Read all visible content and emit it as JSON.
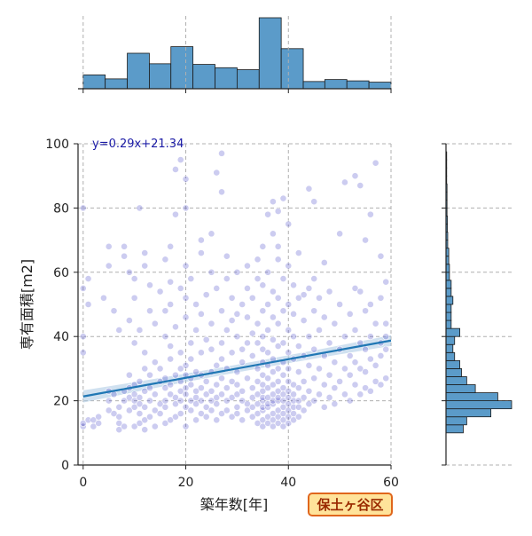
{
  "chart_data": {
    "type": "scatter",
    "title": "",
    "xlabel": "築年数[年]",
    "ylabel": "専有面積[m2]",
    "xlim": [
      -1,
      60
    ],
    "ylim": [
      0,
      100
    ],
    "x_ticks": [
      0,
      20,
      40,
      60
    ],
    "y_ticks": [
      0,
      20,
      40,
      60,
      80,
      100
    ],
    "grid": true,
    "regression": {
      "label": "y=0.29x+21.34",
      "slope": 0.29,
      "intercept": 21.34,
      "color": "#1f77b4",
      "band_color": "#a9c8e4"
    },
    "point_color": "#5555cc",
    "hist_color": "#5b9bc9",
    "x_hist": {
      "bin_edges": [
        0,
        4.3,
        8.6,
        12.9,
        17.1,
        21.4,
        25.7,
        30,
        34.3,
        38.6,
        42.9,
        47.1,
        51.4,
        55.7,
        60
      ],
      "counts": [
        21,
        15,
        54,
        38,
        64,
        37,
        32,
        29,
        108,
        61,
        11,
        14,
        12,
        10
      ]
    },
    "y_hist": {
      "bin_edges": [
        10,
        12.5,
        15,
        17.5,
        20,
        22.5,
        25,
        27.5,
        30,
        32.5,
        35,
        37.5,
        40,
        42.5,
        45,
        47.5,
        50,
        52.5,
        55,
        57.5,
        60,
        62.5,
        65,
        67.5,
        70,
        72.5,
        75,
        77.5,
        80,
        82.5,
        85,
        87.5,
        90,
        92.5,
        95,
        97.5
      ],
      "counts": [
        50,
        60,
        130,
        190,
        150,
        85,
        60,
        45,
        40,
        25,
        20,
        25,
        40,
        15,
        15,
        15,
        20,
        15,
        15,
        10,
        10,
        8,
        8,
        5,
        5,
        4,
        4,
        3,
        3,
        3,
        3,
        2,
        2,
        2,
        2,
        1
      ]
    },
    "points": [
      [
        0,
        12
      ],
      [
        0,
        13
      ],
      [
        0,
        35
      ],
      [
        0,
        40
      ],
      [
        0,
        55
      ],
      [
        0,
        80
      ],
      [
        1,
        14
      ],
      [
        1,
        50
      ],
      [
        1,
        58
      ],
      [
        2,
        12
      ],
      [
        2,
        14
      ],
      [
        3,
        13
      ],
      [
        3,
        15
      ],
      [
        4,
        52
      ],
      [
        5,
        17
      ],
      [
        5,
        20
      ],
      [
        5,
        23
      ],
      [
        5,
        62
      ],
      [
        5,
        68
      ],
      [
        6,
        16
      ],
      [
        6,
        22
      ],
      [
        6,
        48
      ],
      [
        7,
        11
      ],
      [
        7,
        13
      ],
      [
        7,
        15
      ],
      [
        7,
        18
      ],
      [
        7,
        42
      ],
      [
        8,
        12
      ],
      [
        8,
        20
      ],
      [
        8,
        23
      ],
      [
        8,
        65
      ],
      [
        8,
        68
      ],
      [
        9,
        17
      ],
      [
        9,
        21
      ],
      [
        9,
        24
      ],
      [
        9,
        28
      ],
      [
        9,
        45
      ],
      [
        9,
        60
      ],
      [
        10,
        12
      ],
      [
        10,
        18
      ],
      [
        10,
        20
      ],
      [
        10,
        22
      ],
      [
        10,
        25
      ],
      [
        10,
        38
      ],
      [
        10,
        52
      ],
      [
        10,
        58
      ],
      [
        11,
        13
      ],
      [
        11,
        16
      ],
      [
        11,
        19
      ],
      [
        11,
        21
      ],
      [
        11,
        26
      ],
      [
        11,
        42
      ],
      [
        11,
        80
      ],
      [
        12,
        11
      ],
      [
        12,
        14
      ],
      [
        12,
        18
      ],
      [
        12,
        23
      ],
      [
        12,
        30
      ],
      [
        12,
        35
      ],
      [
        12,
        62
      ],
      [
        12,
        66
      ],
      [
        13,
        15
      ],
      [
        13,
        20
      ],
      [
        13,
        24
      ],
      [
        13,
        28
      ],
      [
        13,
        48
      ],
      [
        13,
        56
      ],
      [
        14,
        12
      ],
      [
        14,
        17
      ],
      [
        14,
        22
      ],
      [
        14,
        32
      ],
      [
        14,
        44
      ],
      [
        15,
        16
      ],
      [
        15,
        19
      ],
      [
        15,
        26
      ],
      [
        15,
        30
      ],
      [
        15,
        54
      ],
      [
        16,
        13
      ],
      [
        16,
        18
      ],
      [
        16,
        20
      ],
      [
        16,
        24
      ],
      [
        16,
        27
      ],
      [
        16,
        40
      ],
      [
        16,
        48
      ],
      [
        16,
        64
      ],
      [
        17,
        14
      ],
      [
        17,
        22
      ],
      [
        17,
        25
      ],
      [
        17,
        33
      ],
      [
        17,
        37
      ],
      [
        17,
        50
      ],
      [
        17,
        57
      ],
      [
        17,
        68
      ],
      [
        18,
        15
      ],
      [
        18,
        19
      ],
      [
        18,
        21
      ],
      [
        18,
        28
      ],
      [
        18,
        43
      ],
      [
        18,
        78
      ],
      [
        18,
        92
      ],
      [
        19,
        16
      ],
      [
        19,
        20
      ],
      [
        19,
        23
      ],
      [
        19,
        26
      ],
      [
        19,
        30
      ],
      [
        19,
        35
      ],
      [
        19,
        55
      ],
      [
        19,
        95
      ],
      [
        20,
        12
      ],
      [
        20,
        18
      ],
      [
        20,
        22
      ],
      [
        20,
        24
      ],
      [
        20,
        28
      ],
      [
        20,
        31
      ],
      [
        20,
        46
      ],
      [
        20,
        52
      ],
      [
        20,
        62
      ],
      [
        20,
        80
      ],
      [
        20,
        89
      ],
      [
        21,
        17
      ],
      [
        21,
        20
      ],
      [
        21,
        25
      ],
      [
        21,
        27
      ],
      [
        21,
        33
      ],
      [
        21,
        38
      ],
      [
        21,
        58
      ],
      [
        22,
        14
      ],
      [
        22,
        19
      ],
      [
        22,
        21
      ],
      [
        22,
        23
      ],
      [
        22,
        29
      ],
      [
        22,
        42
      ],
      [
        22,
        50
      ],
      [
        23,
        16
      ],
      [
        23,
        20
      ],
      [
        23,
        24
      ],
      [
        23,
        28
      ],
      [
        23,
        35
      ],
      [
        23,
        47
      ],
      [
        23,
        66
      ],
      [
        23,
        70
      ],
      [
        24,
        15
      ],
      [
        24,
        18
      ],
      [
        24,
        22
      ],
      [
        24,
        26
      ],
      [
        24,
        39
      ],
      [
        24,
        53
      ],
      [
        25,
        17
      ],
      [
        25,
        20
      ],
      [
        25,
        23
      ],
      [
        25,
        29
      ],
      [
        25,
        36
      ],
      [
        25,
        44
      ],
      [
        25,
        60
      ],
      [
        25,
        72
      ],
      [
        26,
        14
      ],
      [
        26,
        19
      ],
      [
        26,
        21
      ],
      [
        26,
        25
      ],
      [
        26,
        31
      ],
      [
        26,
        55
      ],
      [
        26,
        91
      ],
      [
        27,
        16
      ],
      [
        27,
        22
      ],
      [
        27,
        27
      ],
      [
        27,
        33
      ],
      [
        27,
        38
      ],
      [
        27,
        48
      ],
      [
        27,
        85
      ],
      [
        27,
        97
      ],
      [
        28,
        17
      ],
      [
        28,
        20
      ],
      [
        28,
        24
      ],
      [
        28,
        30
      ],
      [
        28,
        42
      ],
      [
        28,
        58
      ],
      [
        28,
        65
      ],
      [
        29,
        15
      ],
      [
        29,
        21
      ],
      [
        29,
        26
      ],
      [
        29,
        35
      ],
      [
        29,
        45
      ],
      [
        29,
        52
      ],
      [
        30,
        16
      ],
      [
        30,
        18
      ],
      [
        30,
        22
      ],
      [
        30,
        25
      ],
      [
        30,
        29
      ],
      [
        30,
        40
      ],
      [
        30,
        47
      ],
      [
        30,
        60
      ],
      [
        31,
        14
      ],
      [
        31,
        20
      ],
      [
        31,
        23
      ],
      [
        31,
        32
      ],
      [
        31,
        36
      ],
      [
        31,
        50
      ],
      [
        32,
        17
      ],
      [
        32,
        19
      ],
      [
        32,
        27
      ],
      [
        32,
        38
      ],
      [
        32,
        46
      ],
      [
        32,
        55
      ],
      [
        32,
        62
      ],
      [
        33,
        15
      ],
      [
        33,
        18
      ],
      [
        33,
        21
      ],
      [
        33,
        24
      ],
      [
        33,
        34
      ],
      [
        33,
        41
      ],
      [
        33,
        52
      ],
      [
        34,
        13
      ],
      [
        34,
        16
      ],
      [
        34,
        19
      ],
      [
        34,
        22
      ],
      [
        34,
        26
      ],
      [
        34,
        30
      ],
      [
        34,
        38
      ],
      [
        34,
        44
      ],
      [
        34,
        58
      ],
      [
        34,
        64
      ],
      [
        35,
        12
      ],
      [
        35,
        14
      ],
      [
        35,
        17
      ],
      [
        35,
        18
      ],
      [
        35,
        20
      ],
      [
        35,
        21
      ],
      [
        35,
        23
      ],
      [
        35,
        25
      ],
      [
        35,
        28
      ],
      [
        35,
        32
      ],
      [
        35,
        36
      ],
      [
        35,
        40
      ],
      [
        35,
        48
      ],
      [
        35,
        56
      ],
      [
        35,
        68
      ],
      [
        36,
        13
      ],
      [
        36,
        15
      ],
      [
        36,
        18
      ],
      [
        36,
        19
      ],
      [
        36,
        21
      ],
      [
        36,
        24
      ],
      [
        36,
        27
      ],
      [
        36,
        31
      ],
      [
        36,
        35
      ],
      [
        36,
        42
      ],
      [
        36,
        50
      ],
      [
        36,
        60
      ],
      [
        36,
        78
      ],
      [
        37,
        12
      ],
      [
        37,
        14
      ],
      [
        37,
        16
      ],
      [
        37,
        19
      ],
      [
        37,
        20
      ],
      [
        37,
        22
      ],
      [
        37,
        25
      ],
      [
        37,
        29
      ],
      [
        37,
        33
      ],
      [
        37,
        39
      ],
      [
        37,
        46
      ],
      [
        37,
        54
      ],
      [
        37,
        72
      ],
      [
        37,
        82
      ],
      [
        38,
        13
      ],
      [
        38,
        15
      ],
      [
        38,
        17
      ],
      [
        38,
        20
      ],
      [
        38,
        21
      ],
      [
        38,
        23
      ],
      [
        38,
        26
      ],
      [
        38,
        30
      ],
      [
        38,
        37
      ],
      [
        38,
        44
      ],
      [
        38,
        52
      ],
      [
        38,
        64
      ],
      [
        38,
        68
      ],
      [
        38,
        79
      ],
      [
        39,
        12
      ],
      [
        39,
        14
      ],
      [
        39,
        16
      ],
      [
        39,
        18
      ],
      [
        39,
        20
      ],
      [
        39,
        22
      ],
      [
        39,
        24
      ],
      [
        39,
        28
      ],
      [
        39,
        32
      ],
      [
        39,
        38
      ],
      [
        39,
        48
      ],
      [
        39,
        58
      ],
      [
        39,
        83
      ],
      [
        40,
        13
      ],
      [
        40,
        15
      ],
      [
        40,
        17
      ],
      [
        40,
        19
      ],
      [
        40,
        21
      ],
      [
        40,
        23
      ],
      [
        40,
        26
      ],
      [
        40,
        30
      ],
      [
        40,
        35
      ],
      [
        40,
        42
      ],
      [
        40,
        50
      ],
      [
        40,
        62
      ],
      [
        40,
        75
      ],
      [
        41,
        14
      ],
      [
        41,
        16
      ],
      [
        41,
        18
      ],
      [
        41,
        20
      ],
      [
        41,
        22
      ],
      [
        41,
        25
      ],
      [
        41,
        33
      ],
      [
        41,
        40
      ],
      [
        41,
        47
      ],
      [
        41,
        56
      ],
      [
        42,
        15
      ],
      [
        42,
        18
      ],
      [
        42,
        20
      ],
      [
        42,
        24
      ],
      [
        42,
        29
      ],
      [
        42,
        37
      ],
      [
        42,
        52
      ],
      [
        42,
        66
      ],
      [
        43,
        17
      ],
      [
        43,
        21
      ],
      [
        43,
        26
      ],
      [
        43,
        34
      ],
      [
        43,
        45
      ],
      [
        43,
        53
      ],
      [
        44,
        19
      ],
      [
        44,
        23
      ],
      [
        44,
        31
      ],
      [
        44,
        40
      ],
      [
        44,
        55
      ],
      [
        44,
        86
      ],
      [
        45,
        20
      ],
      [
        45,
        27
      ],
      [
        45,
        36
      ],
      [
        45,
        48
      ],
      [
        45,
        58
      ],
      [
        45,
        82
      ],
      [
        46,
        22
      ],
      [
        46,
        30
      ],
      [
        46,
        42
      ],
      [
        46,
        52
      ],
      [
        47,
        18
      ],
      [
        47,
        25
      ],
      [
        47,
        34
      ],
      [
        47,
        46
      ],
      [
        47,
        63
      ],
      [
        48,
        21
      ],
      [
        48,
        28
      ],
      [
        48,
        38
      ],
      [
        48,
        54
      ],
      [
        49,
        19
      ],
      [
        49,
        24
      ],
      [
        49,
        32
      ],
      [
        49,
        44
      ],
      [
        50,
        26
      ],
      [
        50,
        36
      ],
      [
        50,
        50
      ],
      [
        50,
        72
      ],
      [
        51,
        22
      ],
      [
        51,
        30
      ],
      [
        51,
        40
      ],
      [
        51,
        88
      ],
      [
        52,
        20
      ],
      [
        52,
        28
      ],
      [
        52,
        34
      ],
      [
        52,
        47
      ],
      [
        53,
        25
      ],
      [
        53,
        32
      ],
      [
        53,
        42
      ],
      [
        53,
        55
      ],
      [
        53,
        90
      ],
      [
        54,
        22
      ],
      [
        54,
        30
      ],
      [
        54,
        38
      ],
      [
        54,
        54
      ],
      [
        54,
        87
      ],
      [
        55,
        24
      ],
      [
        55,
        29
      ],
      [
        55,
        36
      ],
      [
        55,
        48
      ],
      [
        55,
        70
      ],
      [
        56,
        23
      ],
      [
        56,
        33
      ],
      [
        56,
        40
      ],
      [
        56,
        50
      ],
      [
        56,
        78
      ],
      [
        57,
        26
      ],
      [
        57,
        31
      ],
      [
        57,
        44
      ],
      [
        57,
        94
      ],
      [
        58,
        25
      ],
      [
        58,
        34
      ],
      [
        58,
        38
      ],
      [
        58,
        52
      ],
      [
        58,
        65
      ],
      [
        59,
        27
      ],
      [
        59,
        36
      ],
      [
        59,
        40
      ],
      [
        59,
        44
      ],
      [
        59,
        57
      ]
    ]
  },
  "legend_box": {
    "label": "保土ヶ谷区"
  }
}
